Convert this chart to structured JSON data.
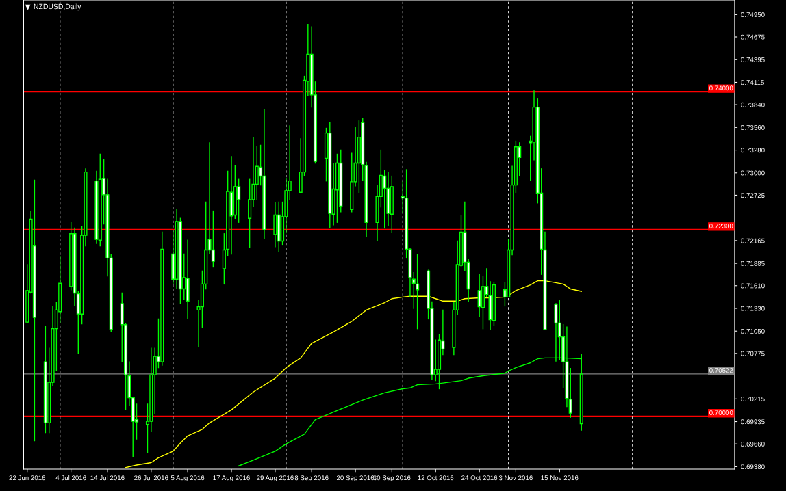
{
  "chart_data": {
    "type": "candlestick",
    "title": "NZDUSD,Daily",
    "x": [
      "2016-06-22",
      "2016-06-23",
      "2016-06-24",
      "2016-06-27",
      "2016-06-28",
      "2016-06-29",
      "2016-06-30",
      "2016-07-01",
      "2016-07-04",
      "2016-07-05",
      "2016-07-06",
      "2016-07-07",
      "2016-07-08",
      "2016-07-11",
      "2016-07-12",
      "2016-07-13",
      "2016-07-14",
      "2016-07-15",
      "2016-07-18",
      "2016-07-19",
      "2016-07-20",
      "2016-07-21",
      "2016-07-22",
      "2016-07-25",
      "2016-07-26",
      "2016-07-27",
      "2016-07-28",
      "2016-07-29",
      "2016-08-01",
      "2016-08-02",
      "2016-08-03",
      "2016-08-04",
      "2016-08-05",
      "2016-08-08",
      "2016-08-09",
      "2016-08-10",
      "2016-08-11",
      "2016-08-12",
      "2016-08-15",
      "2016-08-16",
      "2016-08-17",
      "2016-08-18",
      "2016-08-19",
      "2016-08-22",
      "2016-08-23",
      "2016-08-24",
      "2016-08-25",
      "2016-08-26",
      "2016-08-29",
      "2016-08-30",
      "2016-08-31",
      "2016-09-01",
      "2016-09-02",
      "2016-09-05",
      "2016-09-06",
      "2016-09-07",
      "2016-09-08",
      "2016-09-09",
      "2016-09-12",
      "2016-09-13",
      "2016-09-14",
      "2016-09-15",
      "2016-09-16",
      "2016-09-19",
      "2016-09-20",
      "2016-09-21",
      "2016-09-22",
      "2016-09-23",
      "2016-09-26",
      "2016-09-27",
      "2016-09-28",
      "2016-09-29",
      "2016-09-30",
      "2016-10-03",
      "2016-10-04",
      "2016-10-05",
      "2016-10-06",
      "2016-10-07",
      "2016-10-10",
      "2016-10-11",
      "2016-10-12",
      "2016-10-13",
      "2016-10-14",
      "2016-10-17",
      "2016-10-18",
      "2016-10-19",
      "2016-10-20",
      "2016-10-21",
      "2016-10-24",
      "2016-10-25",
      "2016-10-26",
      "2016-10-27",
      "2016-10-28",
      "2016-10-31",
      "2016-11-01",
      "2016-11-02",
      "2016-11-03",
      "2016-11-04",
      "2016-11-07",
      "2016-11-08",
      "2016-11-09",
      "2016-11-10",
      "2016-11-11",
      "2016-11-14",
      "2016-11-15",
      "2016-11-16",
      "2016-11-17",
      "2016-11-18",
      "2016-11-21"
    ],
    "ohlc": [
      [
        0.7116,
        0.7187,
        0.7115,
        0.7155
      ],
      [
        0.7153,
        0.7253,
        0.7152,
        0.7243
      ],
      [
        0.721,
        0.7291,
        0.697,
        0.7122
      ],
      [
        0.7067,
        0.7111,
        0.698,
        0.6992
      ],
      [
        0.6992,
        0.7084,
        0.698,
        0.7042
      ],
      [
        0.7042,
        0.7135,
        0.7038,
        0.7108
      ],
      [
        0.7108,
        0.714,
        0.7056,
        0.7131
      ],
      [
        0.7129,
        0.7197,
        0.7115,
        0.7164
      ],
      [
        0.716,
        0.7239,
        0.7156,
        0.7225
      ],
      [
        0.7225,
        0.7232,
        0.7137,
        0.7152
      ],
      [
        0.7151,
        0.7154,
        0.7078,
        0.7126
      ],
      [
        0.7126,
        0.7234,
        0.7114,
        0.7223
      ],
      [
        0.7223,
        0.7305,
        0.721,
        0.7301
      ],
      [
        0.729,
        0.7302,
        0.7213,
        0.7218
      ],
      [
        0.7217,
        0.7323,
        0.721,
        0.7292
      ],
      [
        0.7293,
        0.7316,
        0.7237,
        0.7273
      ],
      [
        0.7273,
        0.7292,
        0.7173,
        0.7195
      ],
      [
        0.7195,
        0.7199,
        0.7105,
        0.7107
      ],
      [
        0.7139,
        0.7152,
        0.7067,
        0.7113
      ],
      [
        0.7113,
        0.7114,
        0.7008,
        0.7051
      ],
      [
        0.705,
        0.7067,
        0.7014,
        0.7023
      ],
      [
        0.7023,
        0.7023,
        0.695,
        0.6994
      ],
      [
        0.6996,
        0.7015,
        0.6972,
        0.6993
      ],
      [
        0.699,
        0.7015,
        0.6955,
        0.6994
      ],
      [
        0.6994,
        0.7084,
        0.6982,
        0.7051
      ],
      [
        0.7051,
        0.7084,
        0.7003,
        0.7074
      ],
      [
        0.7074,
        0.712,
        0.706,
        0.7067
      ],
      [
        0.7067,
        0.7227,
        0.7063,
        0.7206
      ],
      [
        0.72,
        0.7228,
        0.7164,
        0.7169
      ],
      [
        0.7169,
        0.7255,
        0.7158,
        0.724
      ],
      [
        0.724,
        0.7244,
        0.7139,
        0.7157
      ],
      [
        0.7157,
        0.72,
        0.7144,
        0.7171
      ],
      [
        0.717,
        0.7217,
        0.712,
        0.7142
      ],
      [
        0.7131,
        0.7143,
        0.7086,
        0.7135
      ],
      [
        0.7135,
        0.7179,
        0.711,
        0.7163
      ],
      [
        0.7163,
        0.7264,
        0.7157,
        0.7205
      ],
      [
        0.7218,
        0.7337,
        0.7201,
        0.7205
      ],
      [
        0.7205,
        0.7253,
        0.7184,
        0.7191
      ],
      [
        0.7182,
        0.7225,
        0.7163,
        0.7205
      ],
      [
        0.7206,
        0.7302,
        0.7198,
        0.7277
      ],
      [
        0.7276,
        0.732,
        0.72,
        0.7247
      ],
      [
        0.7248,
        0.7309,
        0.7244,
        0.7283
      ],
      [
        0.7283,
        0.7292,
        0.7239,
        0.7267
      ],
      [
        0.7244,
        0.7292,
        0.7208,
        0.7267
      ],
      [
        0.7267,
        0.7343,
        0.7259,
        0.7286
      ],
      [
        0.7286,
        0.7333,
        0.7267,
        0.7308
      ],
      [
        0.7307,
        0.7334,
        0.7285,
        0.7296
      ],
      [
        0.7296,
        0.7378,
        0.7219,
        0.723
      ],
      [
        0.7224,
        0.7263,
        0.7209,
        0.7248
      ],
      [
        0.7248,
        0.7264,
        0.7203,
        0.7216
      ],
      [
        0.7216,
        0.7264,
        0.7211,
        0.7246
      ],
      [
        0.7246,
        0.7293,
        0.7226,
        0.7278
      ],
      [
        0.7278,
        0.7358,
        0.7267,
        0.729
      ],
      [
        0.7276,
        0.7342,
        0.7276,
        0.7301
      ],
      [
        0.7301,
        0.7419,
        0.7297,
        0.7414
      ],
      [
        0.7413,
        0.7483,
        0.7395,
        0.7446
      ],
      [
        0.7446,
        0.748,
        0.7381,
        0.7396
      ],
      [
        0.7396,
        0.7412,
        0.7312,
        0.7314
      ],
      [
        0.7318,
        0.7355,
        0.729,
        0.7349
      ],
      [
        0.7349,
        0.7362,
        0.7233,
        0.725
      ],
      [
        0.7249,
        0.7311,
        0.7236,
        0.728
      ],
      [
        0.7279,
        0.7323,
        0.7239,
        0.7312
      ],
      [
        0.7312,
        0.7328,
        0.7252,
        0.7259
      ],
      [
        0.7255,
        0.7324,
        0.7252,
        0.7289
      ],
      [
        0.7289,
        0.7356,
        0.7284,
        0.7312
      ],
      [
        0.7312,
        0.7364,
        0.7276,
        0.7344
      ],
      [
        0.7362,
        0.7367,
        0.7291,
        0.731
      ],
      [
        0.7309,
        0.7313,
        0.7222,
        0.7239
      ],
      [
        0.7239,
        0.7285,
        0.7217,
        0.7271
      ],
      [
        0.7271,
        0.7328,
        0.7258,
        0.7297
      ],
      [
        0.7296,
        0.7303,
        0.7232,
        0.7281
      ],
      [
        0.7281,
        0.7301,
        0.7235,
        0.725
      ],
      [
        0.7249,
        0.7296,
        0.7227,
        0.7283
      ],
      [
        0.7271,
        0.7289,
        0.7251,
        0.7269
      ],
      [
        0.7269,
        0.7304,
        0.7195,
        0.7206
      ],
      [
        0.7206,
        0.7207,
        0.7147,
        0.7171
      ],
      [
        0.7169,
        0.7177,
        0.7133,
        0.7164
      ],
      [
        0.7163,
        0.7199,
        0.7108,
        0.7156
      ],
      [
        0.7179,
        0.718,
        0.712,
        0.7133
      ],
      [
        0.7133,
        0.7141,
        0.7046,
        0.7051
      ],
      [
        0.7051,
        0.7094,
        0.7044,
        0.7058
      ],
      [
        0.7058,
        0.7101,
        0.7034,
        0.7094
      ],
      [
        0.7093,
        0.7131,
        0.7076,
        0.7083
      ],
      [
        0.7085,
        0.714,
        0.7076,
        0.7131
      ],
      [
        0.7131,
        0.7216,
        0.7126,
        0.7187
      ],
      [
        0.7186,
        0.7247,
        0.7185,
        0.7227
      ],
      [
        0.7227,
        0.7264,
        0.718,
        0.719
      ],
      [
        0.719,
        0.7193,
        0.7142,
        0.7157
      ],
      [
        0.7155,
        0.7175,
        0.7123,
        0.7135
      ],
      [
        0.7134,
        0.7172,
        0.7108,
        0.716
      ],
      [
        0.716,
        0.7182,
        0.7147,
        0.715
      ],
      [
        0.7149,
        0.7166,
        0.7107,
        0.7119
      ],
      [
        0.7118,
        0.7165,
        0.7112,
        0.7162
      ],
      [
        0.7156,
        0.7165,
        0.7136,
        0.7147
      ],
      [
        0.7147,
        0.7218,
        0.7147,
        0.7205
      ],
      [
        0.7205,
        0.7308,
        0.7199,
        0.7285
      ],
      [
        0.7285,
        0.7339,
        0.7276,
        0.7332
      ],
      [
        0.7332,
        0.7337,
        0.7297,
        0.7319
      ],
      [
        0.7339,
        0.7345,
        0.7291,
        0.7337
      ],
      [
        0.7338,
        0.7401,
        0.7316,
        0.7381
      ],
      [
        0.7381,
        0.7391,
        0.7263,
        0.7275
      ],
      [
        0.7275,
        0.7305,
        0.7175,
        0.7206
      ],
      [
        0.7205,
        0.7227,
        0.7107,
        0.7107
      ],
      [
        0.7138,
        0.7139,
        0.7068,
        0.7115
      ],
      [
        0.7115,
        0.7143,
        0.707,
        0.7098
      ],
      [
        0.7098,
        0.7113,
        0.7035,
        0.7067
      ],
      [
        0.7067,
        0.711,
        0.7012,
        0.7022
      ],
      [
        0.7021,
        0.7059,
        0.6999,
        0.7004
      ],
      [
        0.6991,
        0.7076,
        0.6983,
        0.7052
      ]
    ],
    "series": [
      {
        "type": "line",
        "color": "#ffff00",
        "x": [
          "2016-07-19",
          "2016-07-22",
          "2016-07-26",
          "2016-07-28",
          "2016-08-01",
          "2016-08-03",
          "2016-08-05",
          "2016-08-09",
          "2016-08-11",
          "2016-08-17",
          "2016-08-23",
          "2016-08-29",
          "2016-09-01",
          "2016-09-05",
          "2016-09-08",
          "2016-09-14",
          "2016-09-19",
          "2016-09-23",
          "2016-09-28",
          "2016-09-30",
          "2016-10-03",
          "2016-10-05",
          "2016-10-10",
          "2016-10-12",
          "2016-10-14",
          "2016-10-18",
          "2016-10-20",
          "2016-10-24",
          "2016-10-27",
          "2016-10-31",
          "2016-11-01",
          "2016-11-03",
          "2016-11-07",
          "2016-11-09",
          "2016-11-11",
          "2016-11-16",
          "2016-11-18",
          "2016-11-21"
        ],
        "values": [
          0.6937,
          0.694,
          0.6943,
          0.6949,
          0.6957,
          0.6967,
          0.6976,
          0.6984,
          0.6992,
          0.7008,
          0.703,
          0.7047,
          0.706,
          0.7072,
          0.709,
          0.7104,
          0.7117,
          0.7131,
          0.714,
          0.7145,
          0.7147,
          0.7148,
          0.7148,
          0.7145,
          0.7142,
          0.7142,
          0.7145,
          0.7146,
          0.7146,
          0.7147,
          0.7149,
          0.7155,
          0.7162,
          0.7167,
          0.7167,
          0.7163,
          0.7157,
          0.7154
        ]
      },
      {
        "type": "line",
        "color": "#00ff00",
        "x": [
          "2016-08-19",
          "2016-08-23",
          "2016-08-29",
          "2016-09-01",
          "2016-09-06",
          "2016-09-09",
          "2016-09-16",
          "2016-09-22",
          "2016-09-28",
          "2016-10-03",
          "2016-10-05",
          "2016-10-07",
          "2016-10-12",
          "2016-10-14",
          "2016-10-19",
          "2016-10-21",
          "2016-10-25",
          "2016-10-27",
          "2016-10-31",
          "2016-11-01",
          "2016-11-03",
          "2016-11-07",
          "2016-11-09",
          "2016-11-11",
          "2016-11-16",
          "2016-11-21"
        ],
        "values": [
          0.6939,
          0.6946,
          0.6957,
          0.6966,
          0.6978,
          0.6996,
          0.7009,
          0.702,
          0.7029,
          0.7034,
          0.7035,
          0.7039,
          0.704,
          0.7041,
          0.7044,
          0.7047,
          0.705,
          0.7051,
          0.7053,
          0.7056,
          0.706,
          0.7066,
          0.7071,
          0.7072,
          0.7072,
          0.7071
        ]
      }
    ],
    "xlim": [
      "2016-06-21",
      "2017-01-02"
    ],
    "xticks": [
      {
        "value": "2016-06-22",
        "label": "22 Jun 2016"
      },
      {
        "value": "2016-07-04",
        "label": "4 Jul 2016"
      },
      {
        "value": "2016-07-14",
        "label": "14 Jul 2016"
      },
      {
        "value": "2016-07-26",
        "label": "26 Jul 2016"
      },
      {
        "value": "2016-08-05",
        "label": "5 Aug 2016"
      },
      {
        "value": "2016-08-17",
        "label": "17 Aug 2016"
      },
      {
        "value": "2016-08-29",
        "label": "29 Aug 2016"
      },
      {
        "value": "2016-09-08",
        "label": "8 Sep 2016"
      },
      {
        "value": "2016-09-20",
        "label": "20 Sep 2016"
      },
      {
        "value": "2016-09-30",
        "label": "30 Sep 2016"
      },
      {
        "value": "2016-10-12",
        "label": "12 Oct 2016"
      },
      {
        "value": "2016-10-24",
        "label": "24 Oct 2016"
      },
      {
        "value": "2016-11-03",
        "label": "3 Nov 2016"
      },
      {
        "value": "2016-11-15",
        "label": "15 Nov 2016"
      }
    ],
    "ylim": [
      0.6935,
      0.7513
    ],
    "yticks": [
      {
        "value": 0.7495,
        "label": "0.74950"
      },
      {
        "value": 0.74675,
        "label": "0.74675"
      },
      {
        "value": 0.74395,
        "label": "0.74395"
      },
      {
        "value": 0.74115,
        "label": "0.74115"
      },
      {
        "value": 0.7384,
        "label": "0.73840"
      },
      {
        "value": 0.7356,
        "label": "0.73560"
      },
      {
        "value": 0.7328,
        "label": "0.73280"
      },
      {
        "value": 0.73,
        "label": "0.73000"
      },
      {
        "value": 0.72725,
        "label": "0.72725"
      },
      {
        "value": 0.72165,
        "label": "0.72165"
      },
      {
        "value": 0.71885,
        "label": "0.71885"
      },
      {
        "value": 0.7161,
        "label": "0.71610"
      },
      {
        "value": 0.7133,
        "label": "0.71330"
      },
      {
        "value": 0.7105,
        "label": "0.71050"
      },
      {
        "value": 0.70775,
        "label": "0.70775"
      },
      {
        "value": 0.70215,
        "label": "0.70215"
      },
      {
        "value": 0.69935,
        "label": "0.69935"
      },
      {
        "value": 0.6966,
        "label": "0.69660"
      },
      {
        "value": 0.6938,
        "label": "0.69380"
      }
    ],
    "ref_lines": [
      {
        "axis": "y",
        "value": 0.74,
        "label": "0.74000",
        "color": "#ff0000"
      },
      {
        "axis": "y",
        "value": 0.723,
        "label": "0.72300",
        "color": "#ff0000"
      },
      {
        "axis": "y",
        "value": 0.7,
        "label": "0.70000",
        "color": "#ff0000"
      },
      {
        "axis": "y",
        "value": 0.70522,
        "label": "0.70522",
        "color": "#808080"
      },
      {
        "axis": "x",
        "value": "2016-07-01",
        "color": "#ffffff",
        "line_style": "dashed"
      },
      {
        "axis": "x",
        "value": "2016-08-01",
        "color": "#ffffff",
        "line_style": "dashed"
      },
      {
        "axis": "x",
        "value": "2016-09-01",
        "color": "#ffffff",
        "line_style": "dashed"
      },
      {
        "axis": "x",
        "value": "2016-10-03",
        "color": "#ffffff",
        "line_style": "dashed"
      },
      {
        "axis": "x",
        "value": "2016-11-01",
        "color": "#ffffff",
        "line_style": "dashed"
      },
      {
        "axis": "x",
        "value": "2016-12-05",
        "color": "#ffffff",
        "line_style": "dashed"
      }
    ],
    "grid": false,
    "legend": false
  }
}
